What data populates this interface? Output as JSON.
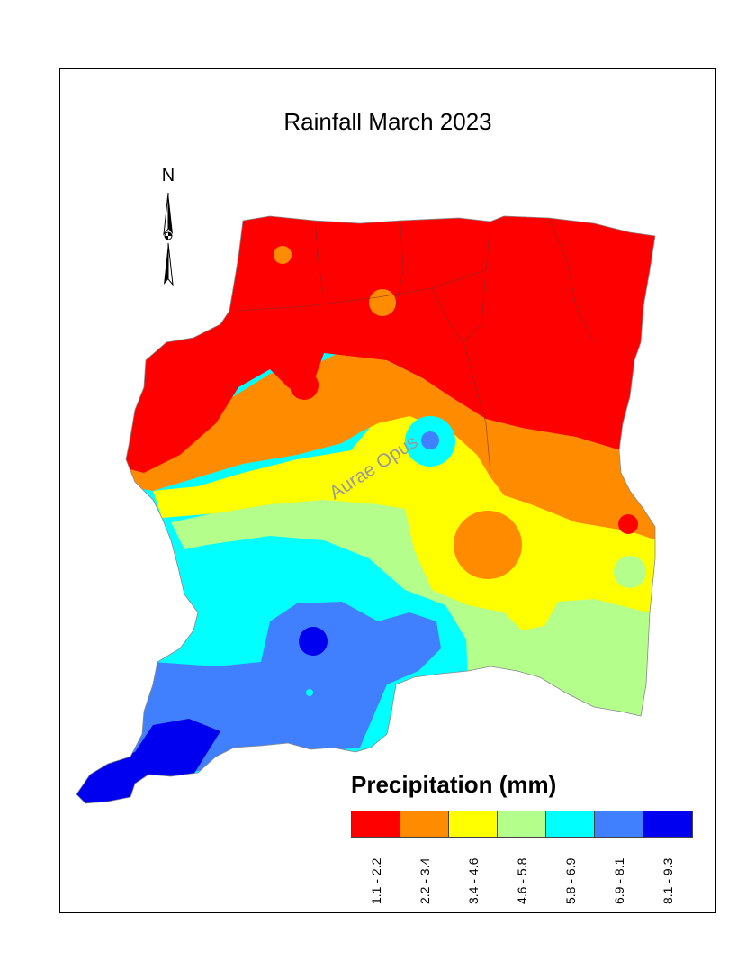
{
  "title": "Rainfall March 2023",
  "north_label": "N",
  "watermark": "Aurae Opus",
  "legend": {
    "title": "Precipitation (mm)",
    "classes": [
      {
        "label": "1.1 - 2.2",
        "color": "#ff0000"
      },
      {
        "label": "2.2 - 3.4",
        "color": "#ff8c00"
      },
      {
        "label": "3.4 - 4.6",
        "color": "#ffff00"
      },
      {
        "label": "4.6 - 5.8",
        "color": "#b4ff8c"
      },
      {
        "label": "5.8 - 6.9",
        "color": "#00ffff"
      },
      {
        "label": "6.9 - 8.1",
        "color": "#4080ff"
      },
      {
        "label": "8.1 - 9.3",
        "color": "#0000f0"
      }
    ]
  }
}
